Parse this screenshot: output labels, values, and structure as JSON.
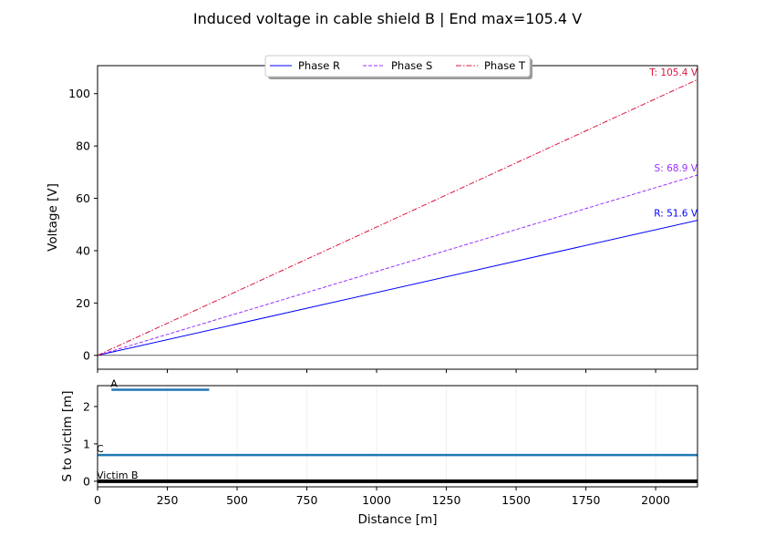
{
  "title": "Induced voltage in cable shield B  |  End max=105.4 V",
  "chart_data": [
    {
      "type": "line",
      "xlabel": "",
      "ylabel": "Voltage [V]",
      "xlim": [
        0,
        2150
      ],
      "ylim": [
        -5.3,
        110.7
      ],
      "yticks": [
        0,
        20,
        40,
        60,
        80,
        100
      ],
      "xticks": [
        0,
        250,
        500,
        750,
        1000,
        1250,
        1500,
        1750,
        2000
      ],
      "xtick_labels_visible": false,
      "grid": false,
      "legend_placement": "top-center",
      "reference_line_y": 0,
      "series": [
        {
          "name": "Phase R",
          "x": [
            0,
            2150
          ],
          "y": [
            0,
            51.6
          ],
          "color": "#0000ff",
          "style": "solid",
          "end_label": "R: 51.6 V"
        },
        {
          "name": "Phase S",
          "x": [
            0,
            2150
          ],
          "y": [
            0,
            68.9
          ],
          "color": "#9b30ff",
          "style": "dashed",
          "end_label": "S: 68.9 V"
        },
        {
          "name": "Phase T",
          "x": [
            0,
            2150
          ],
          "y": [
            0,
            105.4
          ],
          "color": "#dc143c",
          "style": "dashdot",
          "end_label": "T: 105.4 V"
        }
      ]
    },
    {
      "type": "line",
      "xlabel": "Distance [m]",
      "ylabel": "S to victim [m]",
      "xlim": [
        0,
        2150
      ],
      "ylim": [
        -0.15,
        2.56
      ],
      "yticks": [
        0,
        1,
        2
      ],
      "xticks": [
        0,
        250,
        500,
        750,
        1000,
        1250,
        1500,
        1750,
        2000
      ],
      "grid": "x",
      "series": [
        {
          "label": "A",
          "x": [
            50,
            400
          ],
          "y": [
            2.45,
            2.45
          ],
          "color": "#1f77b4"
        },
        {
          "label": "C",
          "x": [
            0,
            2150
          ],
          "y": [
            0.7,
            0.7
          ],
          "color": "#1f77b4"
        },
        {
          "label": "Victim B",
          "x": [
            0,
            2150
          ],
          "y": [
            0,
            0
          ],
          "color": "#000000"
        }
      ]
    }
  ]
}
